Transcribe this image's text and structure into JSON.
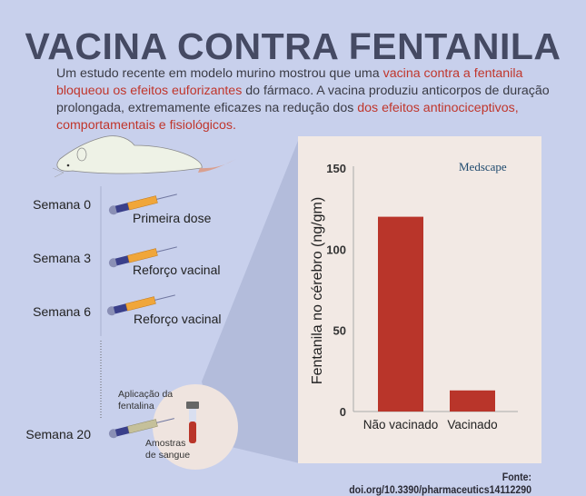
{
  "title": "VACINA CONTRA FENTANILA",
  "intro": {
    "p1": "Um estudo recente em modelo murino mostrou que uma ",
    "h1": "vacina contra a fentanila bloqueou os efeitos euforizantes",
    "p2": " do fármaco. A vacina produziu anticorpos de duração prolongada, extremamente eficazes na redução dos ",
    "h2": "dos efeitos antinociceptivos, comportamentais e fisiológicos."
  },
  "timeline": [
    {
      "week": "Semana 0",
      "label": "Primeira dose"
    },
    {
      "week": "Semana 3",
      "label": "Reforço vacinal"
    },
    {
      "week": "Semana 6",
      "label": "Reforço vacinal"
    },
    {
      "week": "Semana 20",
      "label_a": "Aplicação da fentalina",
      "label_b": "Amostras de sangue"
    }
  ],
  "brand": "Medscape",
  "source": "Fonte: doi.org/10.3390/pharmaceutics14112290",
  "colors": {
    "background": "#c8d0ec",
    "panel": "#f2e9e4",
    "bar": "#b9352a",
    "title": "#454a63",
    "highlight": "#c0362c"
  },
  "chart_data": {
    "type": "bar",
    "categories": [
      "Não vacinado",
      "Vacinado"
    ],
    "values": [
      120,
      13
    ],
    "ylabel": "Fentanila no cérebro (ng/gm)",
    "xlabel": "",
    "ylim": [
      0,
      150
    ],
    "yticks": [
      "0",
      "50",
      "100",
      "150"
    ],
    "grid": false
  }
}
